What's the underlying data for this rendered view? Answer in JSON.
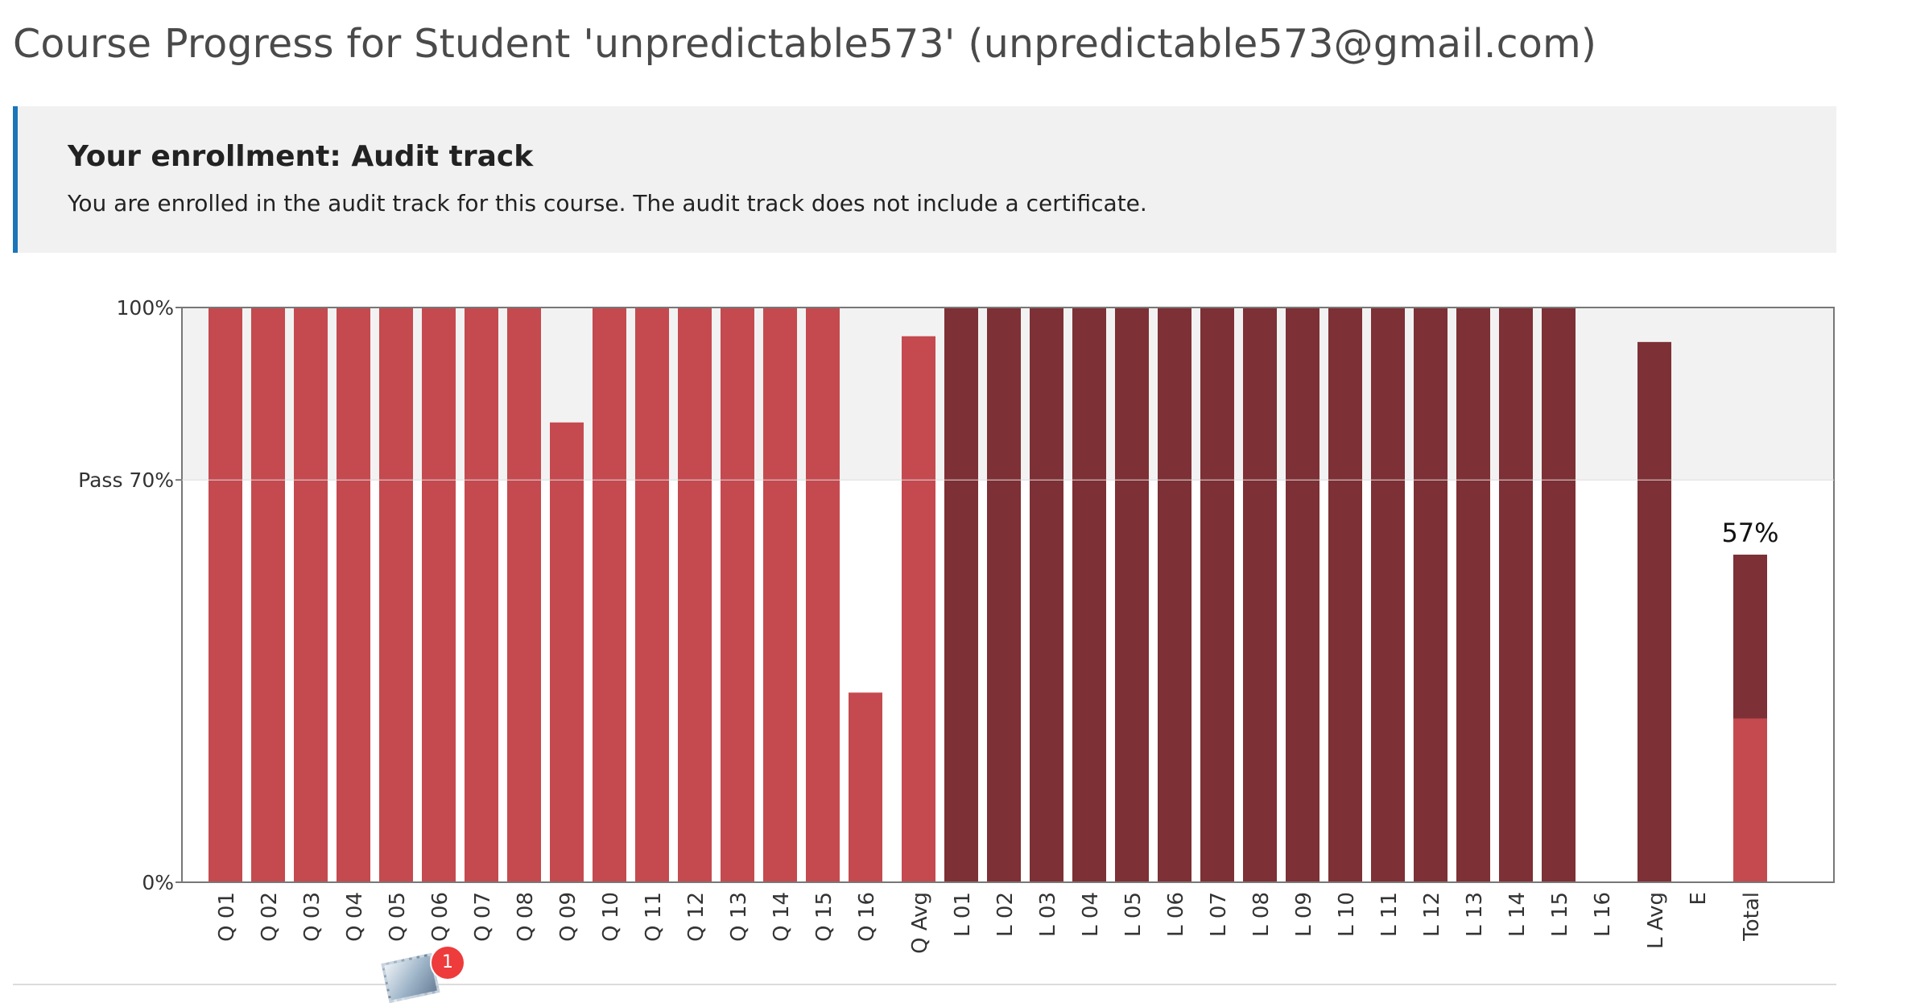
{
  "page": {
    "title": "Course Progress for Student 'unpredictable573' (unpredictable573@gmail.com)"
  },
  "enrollment": {
    "heading": "Your enrollment: Audit track",
    "message": "You are enrolled in the audit track for this course. The audit track does not include a certificate."
  },
  "colors": {
    "quiz_bar": "#c44a4f",
    "lab_bar": "#7d3035",
    "pass_band": "#f2f2f2",
    "banner_accent": "#1a76b8"
  },
  "chart_data": {
    "type": "bar",
    "ylim": [
      0,
      100
    ],
    "y_ticks": [
      {
        "value": 0,
        "label": "0%"
      },
      {
        "value": 70,
        "label": "Pass 70%"
      },
      {
        "value": 100,
        "label": "100%"
      }
    ],
    "pass_threshold": 70,
    "grid": false,
    "categories": [
      "Q 01",
      "Q 02",
      "Q 03",
      "Q 04",
      "Q 05",
      "Q 06",
      "Q 07",
      "Q 08",
      "Q 09",
      "Q 10",
      "Q 11",
      "Q 12",
      "Q 13",
      "Q 14",
      "Q 15",
      "Q 16",
      "Q Avg",
      "L 01",
      "L 02",
      "L 03",
      "L 04",
      "L 05",
      "L 06",
      "L 07",
      "L 08",
      "L 09",
      "L 10",
      "L 11",
      "L 12",
      "L 13",
      "L 14",
      "L 15",
      "L 16",
      "L Avg",
      "E",
      "Total"
    ],
    "values": [
      100,
      100,
      100,
      100,
      100,
      100,
      100,
      100,
      80,
      100,
      100,
      100,
      100,
      100,
      100,
      33,
      95,
      100,
      100,
      100,
      100,
      100,
      100,
      100,
      100,
      100,
      100,
      100,
      100,
      100,
      100,
      100,
      0,
      94,
      0,
      57
    ],
    "bar_kinds": [
      "quiz",
      "quiz",
      "quiz",
      "quiz",
      "quiz",
      "quiz",
      "quiz",
      "quiz",
      "quiz",
      "quiz",
      "quiz",
      "quiz",
      "quiz",
      "quiz",
      "quiz",
      "quiz",
      "quiz",
      "lab",
      "lab",
      "lab",
      "lab",
      "lab",
      "lab",
      "lab",
      "lab",
      "lab",
      "lab",
      "lab",
      "lab",
      "lab",
      "lab",
      "lab",
      "lab",
      "lab",
      "exam",
      "total"
    ],
    "total_breakdown": [
      {
        "kind": "quiz",
        "value": 28.5
      },
      {
        "kind": "lab",
        "value": 28.5
      }
    ],
    "annotations": [
      {
        "category": "Total",
        "text": "57%"
      }
    ]
  }
}
